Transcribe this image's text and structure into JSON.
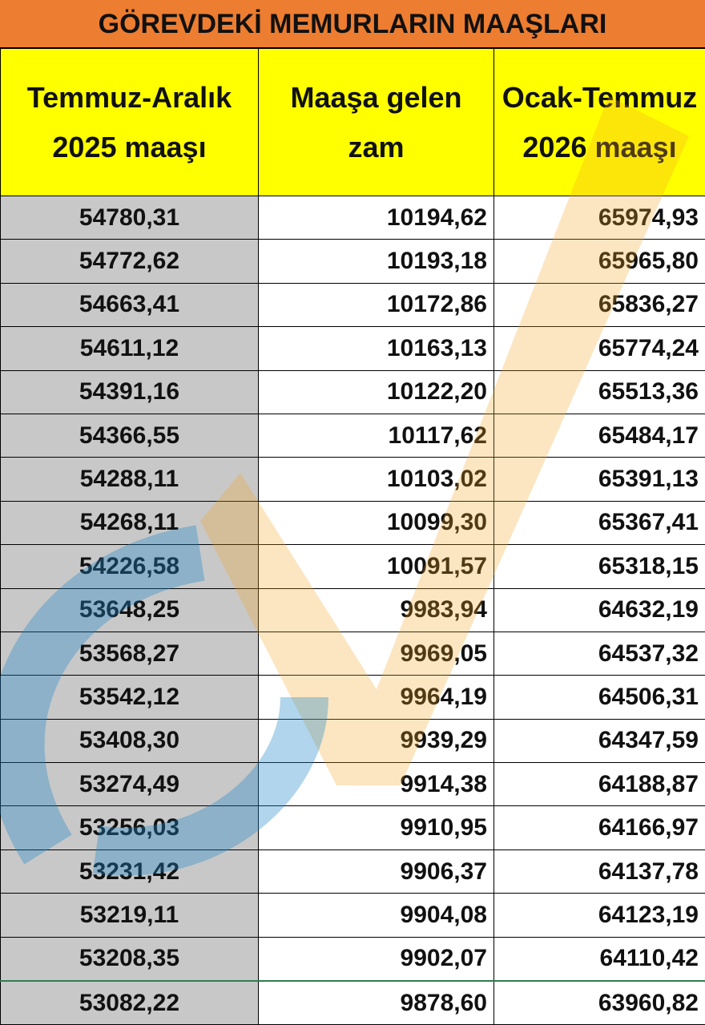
{
  "table": {
    "title": "GÖREVDEKİ MEMURLARIN MAAŞLARI",
    "headers": [
      "Temmuz-Aralık 2025 maaşı",
      "Maaşa gelen zam",
      "Ocak-Temmuz 2026 maaşı"
    ],
    "rows": [
      [
        "54780,31",
        "10194,62",
        "65974,93"
      ],
      [
        "54772,62",
        "10193,18",
        "65965,80"
      ],
      [
        "54663,41",
        "10172,86",
        "65836,27"
      ],
      [
        "54611,12",
        "10163,13",
        "65774,24"
      ],
      [
        "54391,16",
        "10122,20",
        "65513,36"
      ],
      [
        "54366,55",
        "10117,62",
        "65484,17"
      ],
      [
        "54288,11",
        "10103,02",
        "65391,13"
      ],
      [
        "54268,11",
        "10099,30",
        "65367,41"
      ],
      [
        "54226,58",
        "10091,57",
        "65318,15"
      ],
      [
        "53648,25",
        "9983,94",
        "64632,19"
      ],
      [
        "53568,27",
        "9969,05",
        "64537,32"
      ],
      [
        "53542,12",
        "9964,19",
        "64506,31"
      ],
      [
        "53408,30",
        "9939,29",
        "64347,59"
      ],
      [
        "53274,49",
        "9914,38",
        "64188,87"
      ],
      [
        "53256,03",
        "9910,95",
        "64166,97"
      ],
      [
        "53231,42",
        "9906,37",
        "64137,78"
      ],
      [
        "53219,11",
        "9904,08",
        "64123,19"
      ],
      [
        "53208,35",
        "9902,07",
        "64110,42"
      ],
      [
        "53082,22",
        "9878,60",
        "63960,82"
      ]
    ]
  }
}
